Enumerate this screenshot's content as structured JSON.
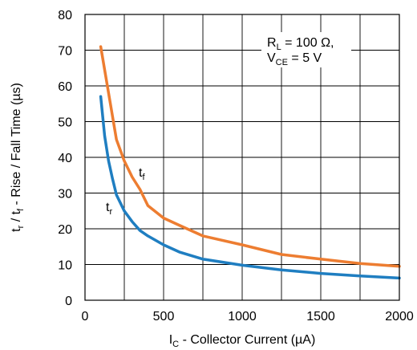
{
  "chart_data": {
    "type": "line",
    "xlabel": {
      "main": "I",
      "sub": "C",
      "rest": " - Collector Current (µA)"
    },
    "ylabel": {
      "p1": "t",
      "s1": "r",
      "p2": " / t",
      "s2": "f",
      "p3": " - Rise / Fall Time (µs)"
    },
    "xlim": [
      0,
      2000
    ],
    "ylim": [
      0,
      80
    ],
    "x_ticks": [
      "0",
      "500",
      "1000",
      "1500",
      "2000"
    ],
    "y_ticks": [
      "0",
      "10",
      "20",
      "30",
      "40",
      "50",
      "60",
      "70",
      "80"
    ],
    "grid": true,
    "annotation": {
      "line1": {
        "main": "R",
        "sub": "L",
        "rest": " = 100 Ω,"
      },
      "line2": {
        "main": "V",
        "sub": "CE",
        "rest": " = 5 V"
      }
    },
    "series": [
      {
        "name": "tf",
        "label_main": "t",
        "label_sub": "f",
        "color": "#ED7D31",
        "x": [
          100,
          150,
          200,
          250,
          300,
          350,
          400,
          500,
          600,
          750,
          1000,
          1250,
          1500,
          1750,
          2000
        ],
        "y": [
          71,
          58,
          45,
          39,
          34.5,
          31,
          26.5,
          23,
          21,
          18,
          15.5,
          12.8,
          11.5,
          10.3,
          9.5
        ]
      },
      {
        "name": "tr",
        "label_main": "t",
        "label_sub": "r",
        "color": "#1F7EC1",
        "x": [
          100,
          125,
          150,
          175,
          200,
          250,
          300,
          350,
          400,
          500,
          600,
          750,
          1000,
          1250,
          1500,
          1750,
          2000
        ],
        "y": [
          57,
          46,
          39,
          34,
          29.5,
          25,
          22,
          19.5,
          18,
          15.5,
          13.5,
          11.5,
          9.8,
          8.5,
          7.5,
          6.8,
          6.2
        ]
      }
    ]
  }
}
